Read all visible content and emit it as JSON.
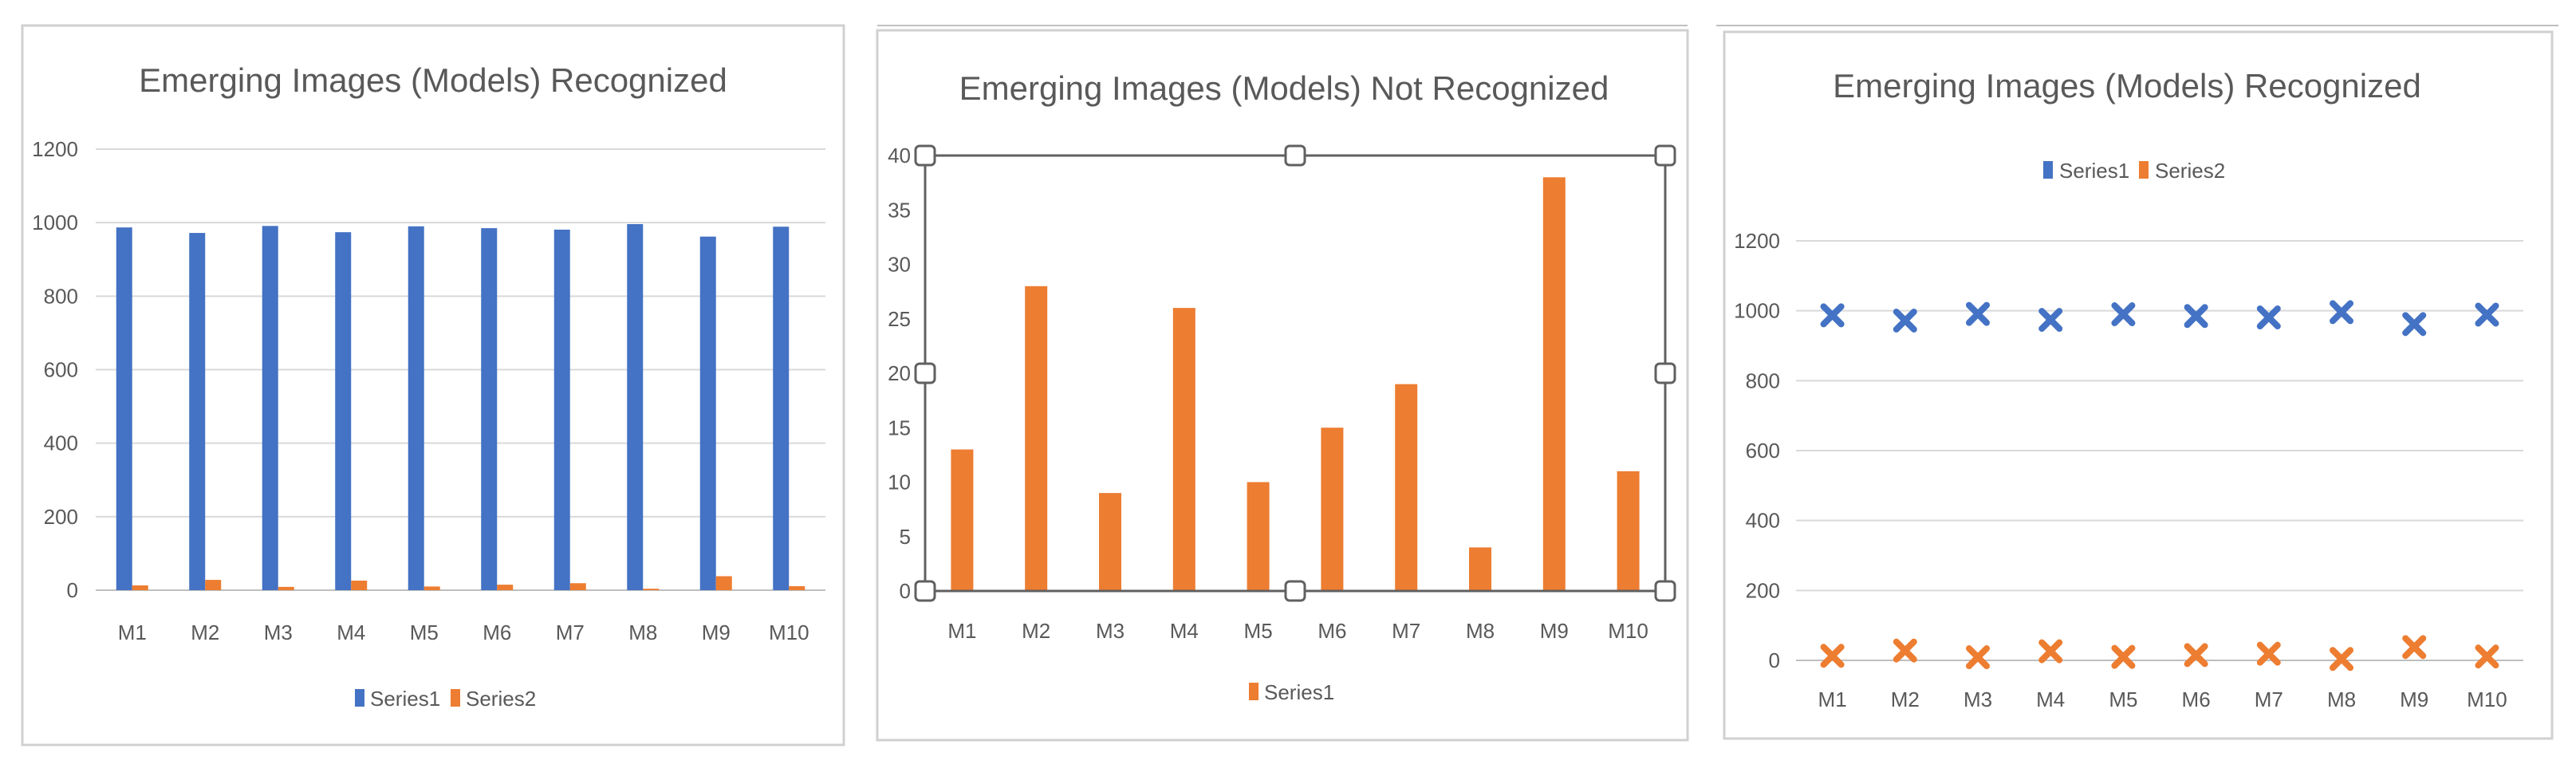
{
  "colors": {
    "series1": "#4472c4",
    "series2": "#ed7d31"
  },
  "chart_data": [
    {
      "type": "bar",
      "title": "Emerging Images (Models) Recognized",
      "xlabel": "",
      "ylabel": "",
      "categories": [
        "M1",
        "M2",
        "M3",
        "M4",
        "M5",
        "M6",
        "M7",
        "M8",
        "M9",
        "M10"
      ],
      "ylim": [
        0,
        1200
      ],
      "yticks": [
        "0",
        "200",
        "400",
        "600",
        "800",
        "1000",
        "1200"
      ],
      "grid": true,
      "legend": "bottom",
      "series": [
        {
          "name": "Series1",
          "values": [
            987,
            972,
            991,
            974,
            990,
            985,
            981,
            996,
            962,
            989
          ]
        },
        {
          "name": "Series2",
          "values": [
            13,
            28,
            9,
            26,
            10,
            15,
            19,
            4,
            38,
            11
          ]
        }
      ]
    },
    {
      "type": "bar",
      "title": "Emerging Images (Models) Not Recognized",
      "xlabel": "",
      "ylabel": "",
      "categories": [
        "M1",
        "M2",
        "M3",
        "M4",
        "M5",
        "M6",
        "M7",
        "M8",
        "M9",
        "M10"
      ],
      "ylim": [
        0,
        40
      ],
      "yticks": [
        "0",
        "5",
        "10",
        "15",
        "20",
        "25",
        "30",
        "35",
        "40"
      ],
      "grid": false,
      "legend": "bottom",
      "series": [
        {
          "name": "Series1",
          "values": [
            13,
            28,
            9,
            26,
            10,
            15,
            19,
            4,
            38,
            11
          ]
        }
      ]
    },
    {
      "type": "scatter",
      "title": "Emerging Images (Models) Recognized",
      "xlabel": "",
      "ylabel": "",
      "categories": [
        "M1",
        "M2",
        "M3",
        "M4",
        "M5",
        "M6",
        "M7",
        "M8",
        "M9",
        "M10"
      ],
      "ylim": [
        0,
        1200
      ],
      "yticks": [
        "0",
        "200",
        "400",
        "600",
        "800",
        "1000",
        "1200"
      ],
      "grid": true,
      "legend": "top",
      "series": [
        {
          "name": "Series1",
          "values": [
            987,
            972,
            991,
            974,
            990,
            985,
            981,
            996,
            962,
            989
          ]
        },
        {
          "name": "Series2",
          "values": [
            13,
            28,
            9,
            26,
            10,
            15,
            19,
            4,
            38,
            11
          ]
        }
      ]
    }
  ]
}
